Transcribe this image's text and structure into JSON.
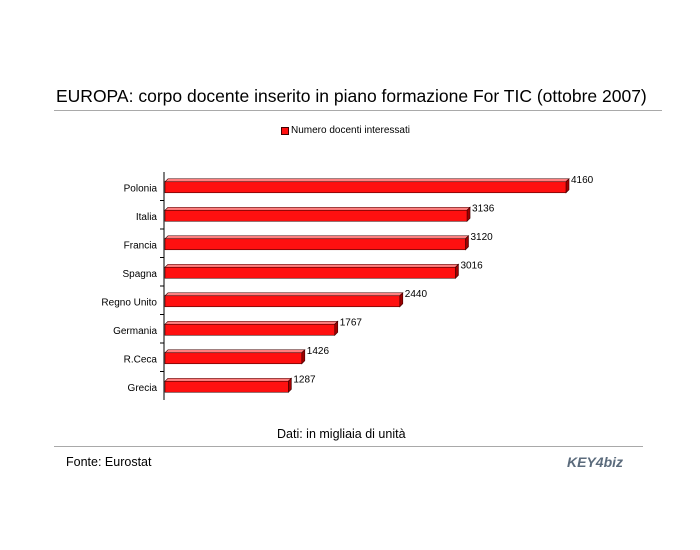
{
  "chart_data": {
    "type": "bar",
    "orientation": "horizontal",
    "title": "EUROPA: corpo docente inserito in piano formazione For TIC (ottobre 2007)",
    "categories": [
      "Polonia",
      "Italia",
      "Francia",
      "Spagna",
      "Regno Unito",
      "Germania",
      "R.Ceca",
      "Grecia"
    ],
    "series": [
      {
        "name": "Numero docenti interessati",
        "values": [
          4160,
          3136,
          3120,
          3016,
          2440,
          1767,
          1426,
          1287
        ]
      }
    ],
    "xlim": [
      0,
      4160
    ],
    "legend_position": "top",
    "grid": false,
    "bar_color": "#ff1010",
    "bar_edge_color": "#400000"
  },
  "note": "Dati: in migliaia di unità",
  "source": "Fonte: Eurostat",
  "logo": {
    "name": "key4biz-logo",
    "text": "KEY4biz",
    "color": "#5b6b7c"
  }
}
